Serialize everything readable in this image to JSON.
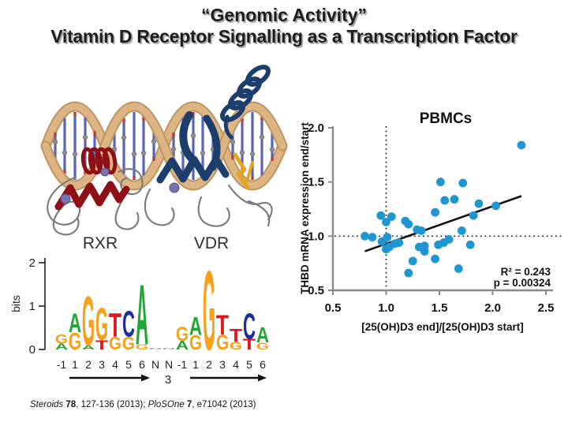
{
  "slide": {
    "title_line1": "“Genomic Activity”",
    "title_line2": "Vitamin D Receptor Signalling as a Transcription Factor"
  },
  "citation": {
    "parts": [
      {
        "text": "Steroids",
        "style": "italic"
      },
      {
        "text": " 78",
        "style": "bold"
      },
      {
        "text": ", 127-136 (2013); ",
        "style": "normal"
      },
      {
        "text": "PloSOne",
        "style": "italic"
      },
      {
        "text": " 7",
        "style": "bold"
      },
      {
        "text": ", e71042 (2013)",
        "style": "normal"
      }
    ]
  },
  "chart_data": [
    {
      "type": "scatter",
      "title": "PBMCs",
      "xlabel": "[25(OH)D3 end]/[25(OH)D3 start]",
      "ylabel": "THBD mRNA expression end/start",
      "xlim": [
        0.5,
        2.5
      ],
      "ylim": [
        0.5,
        2.0
      ],
      "xticks": [
        0.5,
        1.0,
        1.5,
        2.0,
        2.5
      ],
      "yticks": [
        0.5,
        1.0,
        1.5,
        2.0
      ],
      "grid": false,
      "reference_lines": {
        "x": 1.0,
        "y": 1.0,
        "style": "dotted"
      },
      "trend_line": {
        "x1": 0.8,
        "y1": 0.86,
        "x2": 2.27,
        "y2": 1.37
      },
      "annotations": [
        "R² = 0.243",
        "p = 0.00324"
      ],
      "point_color": "#1e96d2",
      "line_color": "#111111",
      "axis_color": "#8a8a8a",
      "points": [
        [
          2.27,
          1.84
        ],
        [
          1.51,
          1.5
        ],
        [
          1.72,
          1.49
        ],
        [
          1.55,
          1.33
        ],
        [
          1.64,
          1.34
        ],
        [
          1.87,
          1.3
        ],
        [
          2.03,
          1.28
        ],
        [
          1.46,
          1.22
        ],
        [
          1.82,
          1.19
        ],
        [
          0.95,
          1.19
        ],
        [
          1.05,
          1.18
        ],
        [
          1.0,
          1.13
        ],
        [
          1.18,
          1.14
        ],
        [
          1.21,
          1.11
        ],
        [
          1.29,
          1.06
        ],
        [
          1.33,
          1.05
        ],
        [
          0.8,
          1.0
        ],
        [
          0.87,
          0.99
        ],
        [
          1.01,
          0.99
        ],
        [
          1.71,
          1.05
        ],
        [
          0.96,
          0.95
        ],
        [
          1.59,
          0.97
        ],
        [
          1.08,
          0.93
        ],
        [
          1.12,
          0.94
        ],
        [
          1.0,
          0.88
        ],
        [
          1.03,
          0.9
        ],
        [
          1.31,
          0.9
        ],
        [
          1.36,
          0.91
        ],
        [
          1.36,
          0.86
        ],
        [
          1.49,
          0.92
        ],
        [
          1.54,
          0.94
        ],
        [
          1.79,
          0.92
        ],
        [
          1.46,
          0.79
        ],
        [
          1.25,
          0.77
        ],
        [
          1.68,
          0.7
        ],
        [
          1.21,
          0.66
        ]
      ]
    },
    {
      "type": "sequence-logo",
      "ylabel": "bits",
      "yticks": [
        0,
        1,
        2
      ],
      "colors": {
        "A": "#23a638",
        "C": "#1d2f9e",
        "G": "#f7a11a",
        "T": "#e0181e",
        "N": "#aaaaaa"
      },
      "groups": [
        {
          "label": "RXR",
          "columns": [
            {
              "pos": "-1",
              "stack": [
                [
                  "G",
                  0.22
                ],
                [
                  "A",
                  0.14
                ]
              ]
            },
            {
              "pos": "1",
              "stack": [
                [
                  "A",
                  0.44
                ],
                [
                  "G",
                  0.4
                ]
              ]
            },
            {
              "pos": "2",
              "stack": [
                [
                  "G",
                  1.15
                ],
                [
                  "A",
                  0.1
                ]
              ]
            },
            {
              "pos": "3",
              "stack": [
                [
                  "G",
                  0.75
                ],
                [
                  "T",
                  0.22
                ]
              ]
            },
            {
              "pos": "4",
              "stack": [
                [
                  "T",
                  0.55
                ],
                [
                  "G",
                  0.3
                ]
              ]
            },
            {
              "pos": "5",
              "stack": [
                [
                  "C",
                  0.6
                ],
                [
                  "G",
                  0.3
                ]
              ]
            },
            {
              "pos": "6",
              "stack": [
                [
                  "A",
                  1.4
                ],
                [
                  "G",
                  0.12
                ]
              ]
            }
          ]
        },
        {
          "label": "VDR",
          "columns": [
            {
              "pos": "-1",
              "stack": [
                [
                  "G",
                  0.32
                ],
                [
                  "A",
                  0.2
                ]
              ]
            },
            {
              "pos": "1",
              "stack": [
                [
                  "A",
                  0.42
                ],
                [
                  "G",
                  0.34
                ]
              ]
            },
            {
              "pos": "2",
              "stack": [
                [
                  "G",
                  1.85
                ]
              ]
            },
            {
              "pos": "3",
              "stack": [
                [
                  "T",
                  0.45
                ],
                [
                  "G",
                  0.35
                ]
              ]
            },
            {
              "pos": "4",
              "stack": [
                [
                  "T",
                  0.3
                ],
                [
                  "G",
                  0.18
                ]
              ]
            },
            {
              "pos": "5",
              "stack": [
                [
                  "C",
                  0.6
                ],
                [
                  "T",
                  0.25
                ]
              ]
            },
            {
              "pos": "6",
              "stack": [
                [
                  "A",
                  0.36
                ],
                [
                  "G",
                  0.16
                ]
              ]
            }
          ]
        }
      ],
      "spacer": {
        "positions": [
          "N",
          "N"
        ],
        "label": "3"
      }
    }
  ]
}
